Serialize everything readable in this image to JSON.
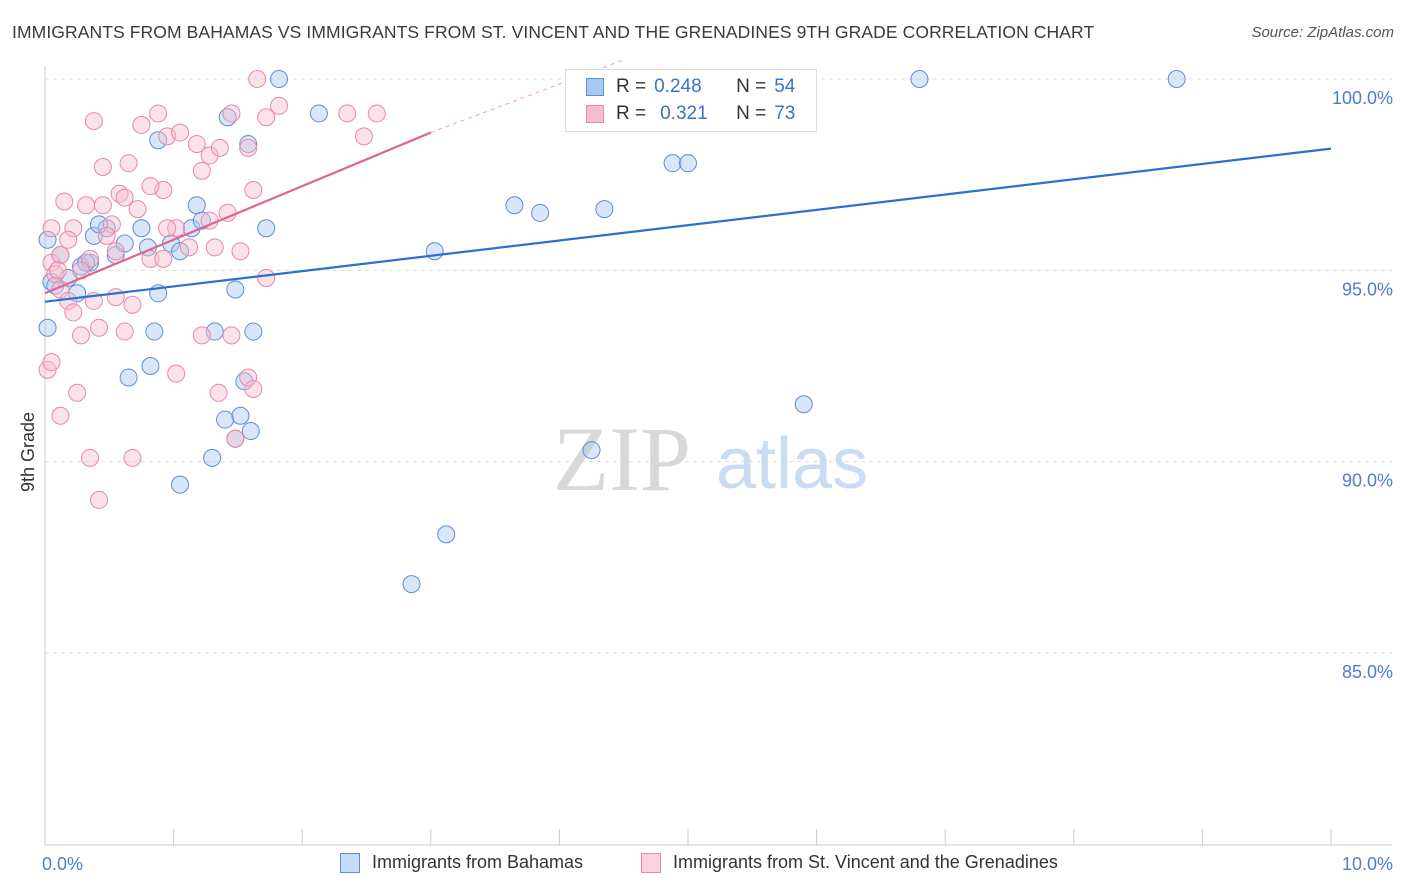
{
  "header": {
    "title": "IMMIGRANTS FROM BAHAMAS VS IMMIGRANTS FROM ST. VINCENT AND THE GRENADINES 9TH GRADE CORRELATION CHART",
    "source": "Source: ZipAtlas.com"
  },
  "watermark": {
    "zip": "ZIP",
    "atlas": "atlas"
  },
  "legend": {
    "rows": [
      {
        "r_label": "R =",
        "r_value": "0.248",
        "n_label": "N =",
        "n_value": "54"
      },
      {
        "r_label": "R =",
        "r_value": "0.321",
        "n_label": "N =",
        "n_value": "73"
      }
    ]
  },
  "colors": {
    "blue_fill": "#a9c8ef",
    "blue_stroke": "#5b8fd6",
    "blue_line": "#2b6fd0",
    "pink_fill": "#f6bdd0",
    "pink_stroke": "#e888aa",
    "pink_line": "#e0648e",
    "tick_text": "#4a7fd0",
    "grid": "#dddddd"
  },
  "chart_data": {
    "type": "scatter",
    "title": "IMMIGRANTS FROM BAHAMAS VS IMMIGRANTS FROM ST. VINCENT AND THE GRENADINES 9TH GRADE CORRELATION CHART",
    "xlabel": "",
    "ylabel": "9th Grade",
    "xlim": [
      0,
      10
    ],
    "ylim": [
      80.5,
      100.5
    ],
    "x_tick_labels": [
      {
        "value": 0,
        "label": "0.0%"
      },
      {
        "value": 10,
        "label": "10.0%"
      }
    ],
    "y_tick_labels": [
      {
        "value": 100,
        "label": "100.0%"
      },
      {
        "value": 95,
        "label": "95.0%"
      },
      {
        "value": 90,
        "label": "90.0%"
      },
      {
        "value": 85,
        "label": "85.0%"
      }
    ],
    "series": [
      {
        "name": "Immigrants from Bahamas",
        "color": "blue",
        "R": 0.248,
        "N": 54,
        "trend": {
          "x": [
            0,
            10
          ],
          "y": [
            94.18,
            98.18
          ],
          "style": "solid"
        },
        "points": [
          [
            0.02,
            95.8
          ],
          [
            0.12,
            95.4
          ],
          [
            0.05,
            94.7
          ],
          [
            0.18,
            94.8
          ],
          [
            0.25,
            94.4
          ],
          [
            0.35,
            95.2
          ],
          [
            0.28,
            95.1
          ],
          [
            0.38,
            95.9
          ],
          [
            0.48,
            96.1
          ],
          [
            0.55,
            95.4
          ],
          [
            0.62,
            95.7
          ],
          [
            0.75,
            96.1
          ],
          [
            0.8,
            95.6
          ],
          [
            0.88,
            94.4
          ],
          [
            0.98,
            95.7
          ],
          [
            1.05,
            95.5
          ],
          [
            1.14,
            96.1
          ],
          [
            1.18,
            96.7
          ],
          [
            1.22,
            96.3
          ],
          [
            1.32,
            93.4
          ],
          [
            1.42,
            99.0
          ],
          [
            1.48,
            94.5
          ],
          [
            1.55,
            92.1
          ],
          [
            1.62,
            93.4
          ],
          [
            1.72,
            96.1
          ],
          [
            1.82,
            100.0
          ],
          [
            1.58,
            98.3
          ],
          [
            0.88,
            98.4
          ],
          [
            0.65,
            92.2
          ],
          [
            0.82,
            92.5
          ],
          [
            0.85,
            93.4
          ],
          [
            1.05,
            89.4
          ],
          [
            1.4,
            91.1
          ],
          [
            1.52,
            91.2
          ],
          [
            1.48,
            90.6
          ],
          [
            1.3,
            90.1
          ],
          [
            1.6,
            90.8
          ],
          [
            2.13,
            99.1
          ],
          [
            2.85,
            86.8
          ],
          [
            3.03,
            95.5
          ],
          [
            3.12,
            88.1
          ],
          [
            3.65,
            96.7
          ],
          [
            3.85,
            96.5
          ],
          [
            4.25,
            90.3
          ],
          [
            4.35,
            96.6
          ],
          [
            4.88,
            97.8
          ],
          [
            5.0,
            97.8
          ],
          [
            5.9,
            91.5
          ],
          [
            6.8,
            100.0
          ],
          [
            8.8,
            100.0
          ],
          [
            0.02,
            93.5
          ],
          [
            0.08,
            94.6
          ],
          [
            0.32,
            95.2
          ],
          [
            0.42,
            96.2
          ]
        ]
      },
      {
        "name": "Immigrants from St. Vincent and the Grenadines",
        "color": "pink",
        "R": 0.321,
        "N": 73,
        "trend": {
          "x": [
            0,
            3.0
          ],
          "y": [
            94.4,
            98.6
          ],
          "style": "solid",
          "extension_x": [
            3.0,
            4.5
          ],
          "extension_y": [
            98.6,
            100.5
          ]
        },
        "points": [
          [
            0.45,
            96.7
          ],
          [
            0.52,
            96.2
          ],
          [
            0.48,
            95.9
          ],
          [
            0.58,
            97.0
          ],
          [
            0.65,
            97.8
          ],
          [
            0.75,
            98.8
          ],
          [
            0.88,
            99.1
          ],
          [
            0.95,
            98.5
          ],
          [
            1.05,
            98.6
          ],
          [
            1.18,
            98.3
          ],
          [
            1.28,
            98.0
          ],
          [
            1.36,
            98.2
          ],
          [
            1.45,
            99.1
          ],
          [
            1.58,
            98.2
          ],
          [
            1.65,
            100.0
          ],
          [
            1.72,
            99.0
          ],
          [
            1.82,
            99.3
          ],
          [
            2.35,
            99.1
          ],
          [
            2.58,
            99.1
          ],
          [
            2.48,
            98.5
          ],
          [
            0.05,
            95.2
          ],
          [
            0.08,
            94.9
          ],
          [
            0.12,
            94.5
          ],
          [
            0.18,
            94.2
          ],
          [
            0.22,
            93.9
          ],
          [
            0.28,
            93.3
          ],
          [
            0.35,
            95.3
          ],
          [
            0.38,
            94.2
          ],
          [
            0.42,
            93.5
          ],
          [
            0.55,
            94.3
          ],
          [
            0.62,
            93.4
          ],
          [
            0.68,
            94.1
          ],
          [
            0.82,
            95.3
          ],
          [
            0.92,
            97.1
          ],
          [
            1.02,
            96.1
          ],
          [
            1.12,
            95.6
          ],
          [
            1.22,
            97.6
          ],
          [
            1.32,
            95.6
          ],
          [
            1.42,
            96.5
          ],
          [
            1.52,
            95.5
          ],
          [
            1.62,
            97.1
          ],
          [
            1.72,
            94.8
          ],
          [
            0.02,
            92.4
          ],
          [
            0.05,
            92.6
          ],
          [
            0.12,
            91.2
          ],
          [
            0.25,
            91.8
          ],
          [
            0.35,
            90.1
          ],
          [
            0.42,
            89.0
          ],
          [
            0.68,
            90.1
          ],
          [
            1.02,
            92.3
          ],
          [
            1.22,
            93.3
          ],
          [
            1.35,
            91.8
          ],
          [
            1.48,
            90.6
          ],
          [
            1.58,
            92.2
          ],
          [
            1.62,
            91.9
          ],
          [
            1.45,
            93.3
          ],
          [
            0.15,
            96.8
          ],
          [
            0.22,
            96.1
          ],
          [
            0.32,
            96.7
          ],
          [
            0.45,
            97.7
          ],
          [
            0.55,
            95.5
          ],
          [
            0.62,
            96.9
          ],
          [
            0.72,
            96.6
          ],
          [
            0.82,
            97.2
          ],
          [
            0.92,
            95.3
          ],
          [
            0.12,
            95.4
          ],
          [
            0.05,
            96.1
          ],
          [
            0.1,
            95.0
          ],
          [
            0.18,
            95.8
          ],
          [
            0.28,
            95.0
          ],
          [
            0.95,
            96.1
          ],
          [
            1.28,
            96.3
          ],
          [
            0.38,
            98.9
          ]
        ]
      }
    ],
    "legend_position": "top-center",
    "grid": true
  },
  "bottom_legend": {
    "items": [
      {
        "label": "Immigrants from Bahamas"
      },
      {
        "label": "Immigrants from St. Vincent and the Grenadines"
      }
    ]
  }
}
